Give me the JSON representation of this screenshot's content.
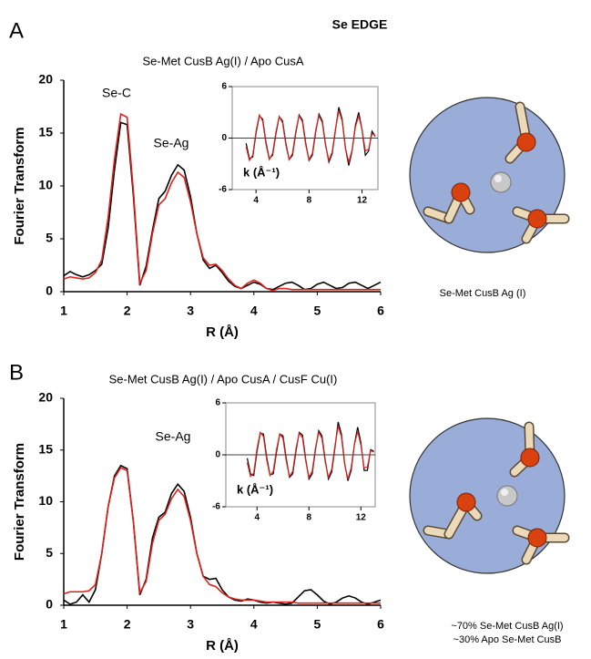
{
  "figure": {
    "title": "Se EDGE",
    "panel_labels": [
      "A",
      "B"
    ],
    "captions": [
      "Se-Met CusB Ag (I)",
      "~70% Se-Met CusB Ag(I)",
      "~30% Apo Se-Met CusB"
    ]
  },
  "chart_data": [
    {
      "type": "line",
      "title": "Se-Met CusB Ag(I) / Apo CusA",
      "xlabel": "R (Å)",
      "ylabel": "Fourier Transform",
      "annotations": [
        {
          "text": "Se-C",
          "color": "#000000"
        },
        {
          "text": "Se-Ag",
          "color": "#4a7fc1"
        }
      ],
      "x": [
        1,
        1.1,
        1.2,
        1.3,
        1.4,
        1.5,
        1.6,
        1.7,
        1.8,
        1.9,
        2,
        2.1,
        2.2,
        2.3,
        2.4,
        2.5,
        2.6,
        2.7,
        2.8,
        2.9,
        3,
        3.1,
        3.2,
        3.3,
        3.4,
        3.5,
        3.6,
        3.7,
        3.8,
        3.9,
        4,
        4.1,
        4.2,
        4.3,
        4.4,
        4.5,
        4.6,
        4.7,
        4.8,
        4.9,
        5,
        5.1,
        5.2,
        5.3,
        5.4,
        5.5,
        5.6,
        5.7,
        5.8,
        5.9,
        6
      ],
      "series": [
        {
          "color": "#000000",
          "values": [
            1.5,
            1.9,
            1.6,
            1.4,
            1.6,
            2.0,
            2.6,
            6.0,
            11.5,
            16.0,
            15.8,
            9.0,
            0.6,
            2.4,
            5.8,
            8.8,
            9.5,
            11.0,
            12.0,
            11.5,
            9.0,
            5.5,
            3.0,
            2.2,
            2.5,
            1.8,
            1.0,
            0.5,
            0.3,
            0.6,
            0.9,
            0.7,
            0.3,
            0.2,
            0.5,
            0.8,
            0.9,
            0.6,
            0.2,
            0.3,
            0.7,
            0.9,
            0.6,
            0.3,
            0.4,
            0.8,
            0.9,
            0.6,
            0.3,
            0.6,
            0.9
          ]
        },
        {
          "color": "#e0201b",
          "values": [
            1.2,
            1.4,
            1.3,
            1.2,
            1.3,
            1.8,
            3.0,
            7.0,
            12.5,
            16.8,
            16.5,
            9.5,
            0.8,
            2.0,
            5.5,
            8.2,
            8.8,
            10.3,
            11.3,
            10.8,
            8.5,
            5.5,
            3.2,
            2.5,
            2.6,
            2.0,
            1.2,
            0.6,
            0.3,
            0.8,
            1.1,
            0.8,
            0.3,
            0.1,
            0.3,
            0.3,
            0.2,
            0.2,
            0.2,
            0.2,
            0.2,
            0.2,
            0.2,
            0.2,
            0.2,
            0.2,
            0.2,
            0.2,
            0.2,
            0.2,
            0.2
          ]
        }
      ],
      "xlim": [
        1,
        6
      ],
      "xticks": [
        1,
        2,
        3,
        4,
        5,
        6
      ],
      "ylim": [
        0,
        20
      ],
      "yticks": [
        0,
        5,
        10,
        15,
        20
      ],
      "frame": false,
      "zero_line": false
    },
    {
      "type": "line",
      "xlabel": "k (Å⁻¹)",
      "x": [
        3.25,
        3.5,
        3.75,
        4,
        4.25,
        4.5,
        4.75,
        5,
        5.25,
        5.5,
        5.75,
        6,
        6.25,
        6.5,
        6.75,
        7,
        7.25,
        7.5,
        7.75,
        8,
        8.25,
        8.5,
        8.75,
        9,
        9.25,
        9.5,
        9.75,
        10,
        10.25,
        10.5,
        10.75,
        11,
        11.25,
        11.5,
        11.75,
        12,
        12.25,
        12.5,
        12.75,
        13
      ],
      "series": [
        {
          "color": "#000000",
          "values": [
            -0.6,
            -2.4,
            -2.2,
            0.6,
            2.6,
            2.2,
            -0.5,
            -2.4,
            -2.0,
            0.5,
            2.5,
            2.0,
            -0.6,
            -2.5,
            -2.0,
            0.6,
            2.7,
            2.1,
            -0.6,
            -2.6,
            -2.0,
            0.7,
            2.8,
            2.0,
            -0.8,
            -2.8,
            -1.8,
            1.0,
            3.6,
            2.2,
            -1.2,
            -3.2,
            -1.5,
            1.5,
            3.0,
            1.0,
            -2.0,
            -1.5,
            0.8,
            0.2
          ]
        },
        {
          "color": "#e0201b",
          "values": [
            -1.0,
            -2.6,
            -2.0,
            0.8,
            2.7,
            2.0,
            -0.7,
            -2.5,
            -1.8,
            0.7,
            2.5,
            1.8,
            -0.8,
            -2.5,
            -1.8,
            0.8,
            2.6,
            1.9,
            -0.8,
            -2.5,
            -1.8,
            0.9,
            2.6,
            1.8,
            -0.9,
            -2.6,
            -1.6,
            1.1,
            3.2,
            2.0,
            -1.2,
            -2.8,
            -1.4,
            1.3,
            2.6,
            1.0,
            -1.5,
            -1.3,
            0.5,
            0.3
          ]
        }
      ],
      "xlim": [
        2.2,
        13.2
      ],
      "xticks": [
        4,
        8,
        12
      ],
      "ylim": [
        -6,
        6
      ],
      "yticks": [
        -6,
        0,
        6
      ],
      "frame": true,
      "zero_line": true
    },
    {
      "type": "line",
      "title": "Se-Met CusB Ag(I) / Apo CusA / CusF Cu(I)",
      "xlabel": "R (Å)",
      "ylabel": "Fourier Transform",
      "annotations": [
        {
          "text": "Se-Ag",
          "color": "#4a7fc1"
        }
      ],
      "x": [
        1,
        1.1,
        1.2,
        1.3,
        1.4,
        1.5,
        1.6,
        1.7,
        1.8,
        1.9,
        2,
        2.1,
        2.2,
        2.3,
        2.4,
        2.5,
        2.6,
        2.7,
        2.8,
        2.9,
        3,
        3.1,
        3.2,
        3.3,
        3.4,
        3.5,
        3.6,
        3.7,
        3.8,
        3.9,
        4,
        4.1,
        4.2,
        4.3,
        4.4,
        4.5,
        4.6,
        4.7,
        4.8,
        4.9,
        5,
        5.1,
        5.2,
        5.3,
        5.4,
        5.5,
        5.6,
        5.7,
        5.8,
        5.9,
        6
      ],
      "series": [
        {
          "color": "#000000",
          "values": [
            0.5,
            0.1,
            0.3,
            1.0,
            0.3,
            1.5,
            5.0,
            9.5,
            12.5,
            13.5,
            13.2,
            8.0,
            1.0,
            2.5,
            6.5,
            8.5,
            9.0,
            10.8,
            11.7,
            11.0,
            8.5,
            5.0,
            2.8,
            2.5,
            2.6,
            1.5,
            0.8,
            0.5,
            0.4,
            0.6,
            0.5,
            0.3,
            0.2,
            0.3,
            0.2,
            0.1,
            0.2,
            0.8,
            1.4,
            1.5,
            1.0,
            0.4,
            0.1,
            0.3,
            0.7,
            0.9,
            0.7,
            0.3,
            0.1,
            0.3,
            0.5
          ]
        },
        {
          "color": "#e0201b",
          "values": [
            1.1,
            1.3,
            1.3,
            1.3,
            1.4,
            2.0,
            5.0,
            9.5,
            12.3,
            13.3,
            13.0,
            8.0,
            1.2,
            2.3,
            6.0,
            8.2,
            8.8,
            10.3,
            11.2,
            10.5,
            8.2,
            5.0,
            2.8,
            2.0,
            1.8,
            1.2,
            0.8,
            0.6,
            0.5,
            0.5,
            0.5,
            0.4,
            0.3,
            0.3,
            0.3,
            0.3,
            0.3,
            0.2,
            0.2,
            0.2,
            0.2,
            0.2,
            0.2,
            0.2,
            0.2,
            0.2,
            0.2,
            0.2,
            0.2,
            0.2,
            0.2
          ]
        }
      ],
      "xlim": [
        1,
        6
      ],
      "xticks": [
        1,
        2,
        3,
        4,
        5,
        6
      ],
      "ylim": [
        0,
        20
      ],
      "yticks": [
        0,
        5,
        10,
        15,
        20
      ],
      "frame": false,
      "zero_line": false
    },
    {
      "type": "line",
      "xlabel": "k (Å⁻¹)",
      "x": [
        3.25,
        3.5,
        3.75,
        4,
        4.25,
        4.5,
        4.75,
        5,
        5.25,
        5.5,
        5.75,
        6,
        6.25,
        6.5,
        6.75,
        7,
        7.25,
        7.5,
        7.75,
        8,
        8.25,
        8.5,
        8.75,
        9,
        9.25,
        9.5,
        9.75,
        10,
        10.25,
        10.5,
        10.75,
        11,
        11.25,
        11.5,
        11.75,
        12,
        12.25,
        12.5,
        12.75,
        13
      ],
      "series": [
        {
          "color": "#000000",
          "values": [
            -0.4,
            -2.2,
            -2.4,
            0.4,
            2.5,
            2.4,
            -0.3,
            -2.3,
            -2.2,
            0.3,
            2.4,
            2.2,
            -0.4,
            -2.6,
            -2.2,
            0.4,
            2.6,
            2.3,
            -0.5,
            -2.8,
            -2.2,
            0.6,
            2.8,
            2.2,
            -0.6,
            -2.8,
            -2.0,
            0.8,
            3.8,
            2.4,
            -1.0,
            -3.0,
            -1.8,
            1.2,
            3.2,
            1.4,
            -1.8,
            -1.8,
            0.6,
            0.4
          ]
        },
        {
          "color": "#e0201b",
          "values": [
            -0.9,
            -2.5,
            -2.1,
            0.7,
            2.6,
            2.1,
            -0.6,
            -2.4,
            -1.9,
            0.6,
            2.4,
            1.9,
            -0.7,
            -2.5,
            -1.9,
            0.7,
            2.5,
            2.0,
            -0.7,
            -2.6,
            -1.9,
            0.8,
            2.6,
            1.9,
            -0.8,
            -2.6,
            -1.7,
            1.0,
            3.3,
            2.1,
            -1.1,
            -2.8,
            -1.5,
            1.2,
            2.7,
            1.1,
            -1.5,
            -1.4,
            0.5,
            0.3
          ]
        }
      ],
      "xlim": [
        1.6,
        13.1
      ],
      "xticks": [
        4,
        8,
        12
      ],
      "ylim": [
        -6,
        6
      ],
      "yticks": [
        -6,
        0,
        6
      ],
      "frame": true,
      "zero_line": true
    }
  ]
}
